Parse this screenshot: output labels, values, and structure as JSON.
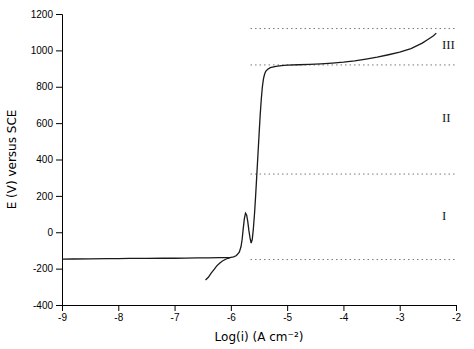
{
  "chart_data": {
    "type": "line",
    "xlabel": "Log(i) (A cm⁻²)",
    "ylabel": "E (V) versus SCE",
    "xlim": [
      -9,
      -2
    ],
    "ylim": [
      -400,
      1200
    ],
    "xticks": [
      -9,
      -8,
      -7,
      -6,
      -5,
      -4,
      -3,
      -2
    ],
    "yticks": [
      -400,
      -200,
      0,
      200,
      400,
      600,
      800,
      1000,
      1200
    ],
    "series": [
      {
        "color": "#1a1a1a",
        "x": [
          -9.0,
          -8.8,
          -8.5,
          -8.2,
          -8.0,
          -7.8,
          -7.5,
          -7.2,
          -7.0,
          -6.8,
          -6.6,
          -6.4,
          -6.2,
          -6.1,
          -6.05,
          -6.0,
          -5.95,
          -5.9,
          -5.85,
          -5.82,
          -5.8,
          -5.78,
          -5.76,
          -5.74,
          -5.72,
          -5.7,
          -5.68,
          -5.66,
          -5.64,
          -5.62,
          -5.6,
          -5.58,
          -5.56,
          -5.54,
          -5.52,
          -5.5,
          -5.48,
          -5.46,
          -5.44,
          -5.42,
          -5.4,
          -5.38,
          -5.35,
          -5.3,
          -5.2,
          -5.1,
          -5.0,
          -4.8,
          -4.6,
          -4.4,
          -4.2,
          -4.0,
          -3.8,
          -3.6,
          -3.4,
          -3.2,
          -3.0,
          -2.8,
          -2.6,
          -2.5,
          -2.4,
          -2.35
        ],
        "values": [
          -148,
          -147,
          -146,
          -145,
          -145,
          -144,
          -144,
          -143,
          -143,
          -142,
          -141,
          -141,
          -140,
          -140,
          -139,
          -138,
          -135,
          -128,
          -110,
          -80,
          -40,
          20,
          75,
          105,
          95,
          60,
          10,
          -30,
          -60,
          -40,
          20,
          100,
          200,
          310,
          420,
          530,
          640,
          730,
          800,
          845,
          870,
          885,
          895,
          905,
          912,
          916,
          919,
          921,
          923,
          926,
          930,
          935,
          942,
          952,
          963,
          976,
          990,
          1010,
          1040,
          1060,
          1080,
          1095
        ]
      },
      {
        "color": "#1a1a1a",
        "x": [
          -6.0,
          -6.05,
          -6.1,
          -6.15,
          -6.2,
          -6.25,
          -6.3,
          -6.35,
          -6.4,
          -6.45
        ],
        "values": [
          -138,
          -143,
          -150,
          -158,
          -170,
          -185,
          -205,
          -225,
          -248,
          -262
        ]
      }
    ],
    "reference_lines": {
      "y": [
        -150,
        320,
        920,
        1120
      ],
      "x_start": -5.65,
      "color": "#777777",
      "line_style": "dotted"
    },
    "annotations": [
      {
        "text": "I",
        "x": -2.25,
        "y": 85
      },
      {
        "text": "II",
        "x": -2.25,
        "y": 620
      },
      {
        "text": "III",
        "x": -2.25,
        "y": 1025
      }
    ]
  }
}
